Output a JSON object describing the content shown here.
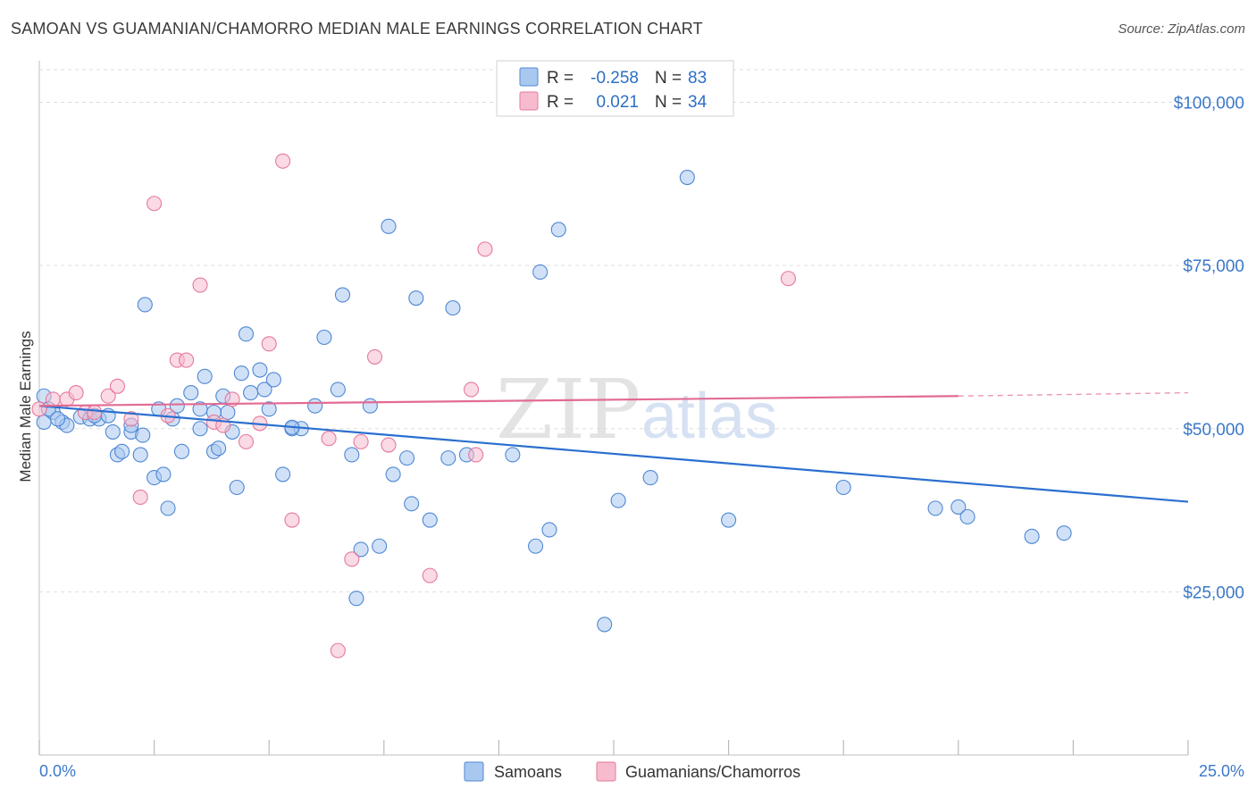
{
  "title": "SAMOAN VS GUAMANIAN/CHAMORRO MEDIAN MALE EARNINGS CORRELATION CHART",
  "source": "Source: ZipAtlas.com",
  "watermark": {
    "zip": "ZIP",
    "atlas": "atlas"
  },
  "colors": {
    "blue_fill": "#a9c8f0",
    "blue_stroke": "#4f87d3",
    "blue_line": "#2a6fd0",
    "pink_fill": "#f6bccd",
    "pink_stroke": "#e6799b",
    "pink_line": "#e26b93",
    "tick_text": "#3b78c9",
    "grid": "#dddddd"
  },
  "legend": {
    "rows": [
      {
        "r_label": "R =",
        "r_value": "-0.258",
        "n_label": "N =",
        "n_value": "83",
        "series": "blue"
      },
      {
        "r_label": "R =",
        "r_value": "0.021",
        "n_label": "N =",
        "n_value": "34",
        "series": "pink"
      }
    ]
  },
  "bottom_legend": [
    "Samoans",
    "Guamanians/Chamorros"
  ],
  "chart_data": {
    "type": "scatter",
    "title": "SAMOAN VS GUAMANIAN/CHAMORRO MEDIAN MALE EARNINGS CORRELATION CHART",
    "xlabel": "",
    "ylabel": "Median Male Earnings",
    "xlim": [
      0,
      25
    ],
    "ylim": [
      0,
      105000
    ],
    "x_tick_labels": [
      {
        "value": 0,
        "label": "0.0%"
      },
      {
        "value": 25,
        "label": "25.0%"
      }
    ],
    "y_ticks": [
      {
        "value": 25000,
        "label": "$25,000"
      },
      {
        "value": 50000,
        "label": "$50,000"
      },
      {
        "value": 75000,
        "label": "$75,000"
      },
      {
        "value": 100000,
        "label": "$100,000"
      }
    ],
    "series": [
      {
        "name": "Samoans",
        "color": "blue",
        "r": -0.258,
        "n": 83,
        "trend": {
          "x0": 0,
          "y0": 53500,
          "x1": 25,
          "y1": 38800
        },
        "points": [
          [
            0.1,
            51000
          ],
          [
            0.1,
            55000
          ],
          [
            0.3,
            52500
          ],
          [
            0.5,
            51000
          ],
          [
            0.6,
            50500
          ],
          [
            0.9,
            51800
          ],
          [
            1.1,
            51500
          ],
          [
            1.3,
            51500
          ],
          [
            1.5,
            52000
          ],
          [
            1.6,
            49500
          ],
          [
            1.7,
            46000
          ],
          [
            1.8,
            46500
          ],
          [
            2.0,
            49500
          ],
          [
            2.2,
            46000
          ],
          [
            2.25,
            49000
          ],
          [
            2.3,
            69000
          ],
          [
            2.5,
            42500
          ],
          [
            2.6,
            53000
          ],
          [
            2.7,
            43000
          ],
          [
            2.8,
            37800
          ],
          [
            2.9,
            51500
          ],
          [
            3.0,
            53500
          ],
          [
            3.1,
            46500
          ],
          [
            3.3,
            55500
          ],
          [
            3.5,
            50000
          ],
          [
            3.5,
            53000
          ],
          [
            3.6,
            58000
          ],
          [
            3.8,
            46500
          ],
          [
            3.9,
            47000
          ],
          [
            4.0,
            55000
          ],
          [
            4.1,
            52500
          ],
          [
            4.2,
            49500
          ],
          [
            4.3,
            41000
          ],
          [
            4.4,
            58500
          ],
          [
            4.5,
            64500
          ],
          [
            4.6,
            55500
          ],
          [
            4.8,
            59000
          ],
          [
            4.9,
            56000
          ],
          [
            5.0,
            53000
          ],
          [
            5.1,
            57500
          ],
          [
            5.3,
            43000
          ],
          [
            5.5,
            50000
          ],
          [
            5.7,
            50000
          ],
          [
            6.0,
            53500
          ],
          [
            6.2,
            64000
          ],
          [
            6.5,
            56000
          ],
          [
            6.6,
            70500
          ],
          [
            6.8,
            46000
          ],
          [
            7.0,
            31500
          ],
          [
            7.2,
            53500
          ],
          [
            6.9,
            24000
          ],
          [
            7.4,
            32000
          ],
          [
            7.7,
            43000
          ],
          [
            8.0,
            45500
          ],
          [
            8.1,
            38500
          ],
          [
            8.5,
            36000
          ],
          [
            7.6,
            81000
          ],
          [
            8.2,
            70000
          ],
          [
            8.9,
            45500
          ],
          [
            9.0,
            68500
          ],
          [
            9.3,
            46000
          ],
          [
            10.3,
            46000
          ],
          [
            10.9,
            74000
          ],
          [
            10.8,
            32000
          ],
          [
            11.1,
            34500
          ],
          [
            11.3,
            80500
          ],
          [
            12.3,
            20000
          ],
          [
            12.6,
            39000
          ],
          [
            13.3,
            42500
          ],
          [
            14.1,
            88500
          ],
          [
            15.0,
            36000
          ],
          [
            17.5,
            41000
          ],
          [
            19.5,
            37800
          ],
          [
            20.0,
            38000
          ],
          [
            20.2,
            36500
          ],
          [
            21.6,
            33500
          ],
          [
            22.3,
            34000
          ],
          [
            0.2,
            53000
          ],
          [
            0.4,
            51500
          ],
          [
            1.2,
            52000
          ],
          [
            2.0,
            50500
          ],
          [
            3.8,
            52500
          ],
          [
            5.5,
            50200
          ]
        ]
      },
      {
        "name": "Guamanians/Chamorros",
        "color": "pink",
        "r": 0.021,
        "n": 34,
        "trend": {
          "x0": 0,
          "y0": 53500,
          "x1": 20,
          "y1": 55000,
          "dash_x1": 25,
          "dash_y1": 55500
        },
        "points": [
          [
            0.0,
            53000
          ],
          [
            0.3,
            54500
          ],
          [
            0.6,
            54500
          ],
          [
            0.8,
            55500
          ],
          [
            1.0,
            52500
          ],
          [
            1.2,
            52500
          ],
          [
            1.5,
            55000
          ],
          [
            1.7,
            56500
          ],
          [
            2.0,
            51500
          ],
          [
            2.2,
            39500
          ],
          [
            2.5,
            84500
          ],
          [
            2.8,
            52000
          ],
          [
            3.0,
            60500
          ],
          [
            3.2,
            60500
          ],
          [
            3.5,
            72000
          ],
          [
            3.8,
            51000
          ],
          [
            4.0,
            50500
          ],
          [
            4.2,
            54500
          ],
          [
            4.5,
            48000
          ],
          [
            4.8,
            50800
          ],
          [
            5.0,
            63000
          ],
          [
            5.3,
            91000
          ],
          [
            5.5,
            36000
          ],
          [
            6.3,
            48500
          ],
          [
            6.5,
            16000
          ],
          [
            6.8,
            30000
          ],
          [
            7.0,
            48000
          ],
          [
            7.3,
            61000
          ],
          [
            7.6,
            47500
          ],
          [
            8.5,
            27500
          ],
          [
            9.4,
            56000
          ],
          [
            9.5,
            46000
          ],
          [
            9.7,
            77500
          ],
          [
            16.3,
            73000
          ]
        ]
      }
    ]
  }
}
